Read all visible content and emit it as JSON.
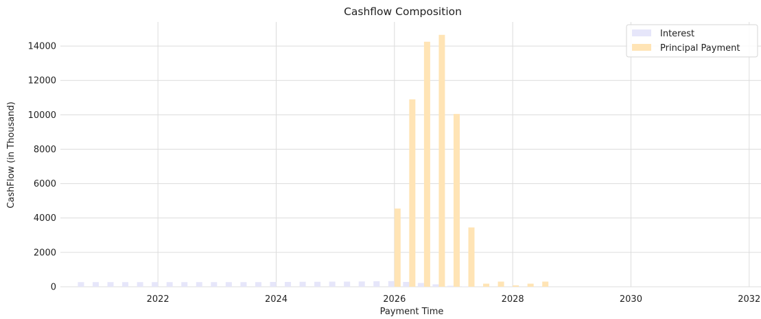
{
  "chart_data": {
    "type": "bar",
    "title": "Cashflow Composition",
    "xlabel": "Payment Time",
    "ylabel": "CashFlow (in Thousand)",
    "xlim": [
      2020.35,
      2032.2
    ],
    "ylim": [
      0,
      15400
    ],
    "x_ticks": [
      2022,
      2024,
      2026,
      2028,
      2030,
      2032
    ],
    "y_ticks": [
      0,
      2000,
      4000,
      6000,
      8000,
      10000,
      12000,
      14000
    ],
    "grid": true,
    "legend_position": "top-right",
    "series": [
      {
        "name": "Interest",
        "color": "#e6e6fa",
        "x": [
          2020.75,
          2021.0,
          2021.25,
          2021.5,
          2021.75,
          2022.0,
          2022.25,
          2022.5,
          2022.75,
          2023.0,
          2023.25,
          2023.5,
          2023.75,
          2024.0,
          2024.25,
          2024.5,
          2024.75,
          2025.0,
          2025.25,
          2025.5,
          2025.75,
          2026.0,
          2026.25,
          2026.5,
          2026.75,
          2027.0,
          2027.25
        ],
        "values": [
          270,
          270,
          270,
          270,
          270,
          270,
          270,
          270,
          270,
          270,
          270,
          270,
          270,
          280,
          280,
          290,
          290,
          300,
          300,
          310,
          320,
          330,
          280,
          220,
          140,
          60,
          20
        ]
      },
      {
        "name": "Principal Payment",
        "color": "#ffe4b5",
        "x": [
          2026.0,
          2026.25,
          2026.5,
          2026.75,
          2027.0,
          2027.25,
          2027.5,
          2027.75,
          2028.0,
          2028.25,
          2028.5
        ],
        "values": [
          4550,
          10900,
          14250,
          14650,
          10050,
          3450,
          180,
          300,
          80,
          180,
          300
        ]
      }
    ]
  }
}
